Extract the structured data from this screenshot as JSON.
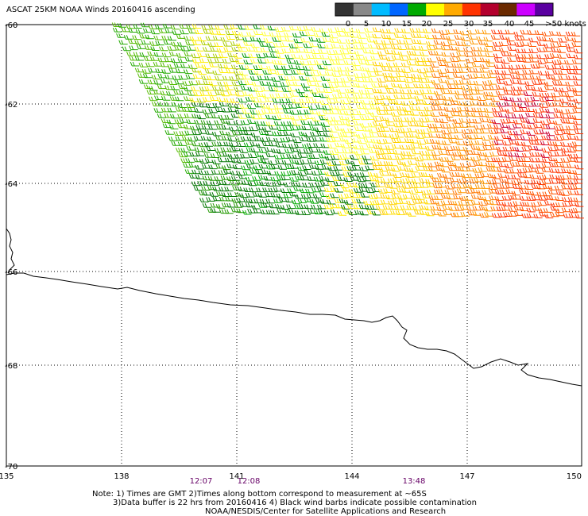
{
  "title": "ASCAT 25KM NOAA Winds 20160416 ascending",
  "legend": {
    "labels": [
      "0",
      "5",
      "10",
      "15",
      "20",
      "25",
      "30",
      "35",
      "40",
      "45",
      ">50 knots"
    ],
    "colors": [
      "#333333",
      "#888888",
      "#00bbff",
      "#0066ff",
      "#00aa00",
      "#ffff00",
      "#ffaa00",
      "#ff3300",
      "#b3002d",
      "#6b2a00",
      "#cc00ff",
      "#5a00a0"
    ]
  },
  "axes": {
    "lat_labels": [
      "-60",
      "-62",
      "-64",
      "-66",
      "-68",
      "-70"
    ],
    "lon_labels": [
      "135",
      "138",
      "141",
      "144",
      "147",
      "150"
    ]
  },
  "times": [
    "12:07",
    "12:08",
    "13:48"
  ],
  "notes": {
    "line1": "Note: 1) Times are GMT 2)Times along bottom correspond to measurement at ~65S",
    "line2": "3)Data buffer is 22 hrs from 20160416 4) Black wind barbs indicate possible contamination",
    "line3": "NOAA/NESDIS/Center for Satellite Applications and Research"
  },
  "colors": {
    "time_label": "#660066",
    "coast": "#000000",
    "grid": "#000000"
  }
}
